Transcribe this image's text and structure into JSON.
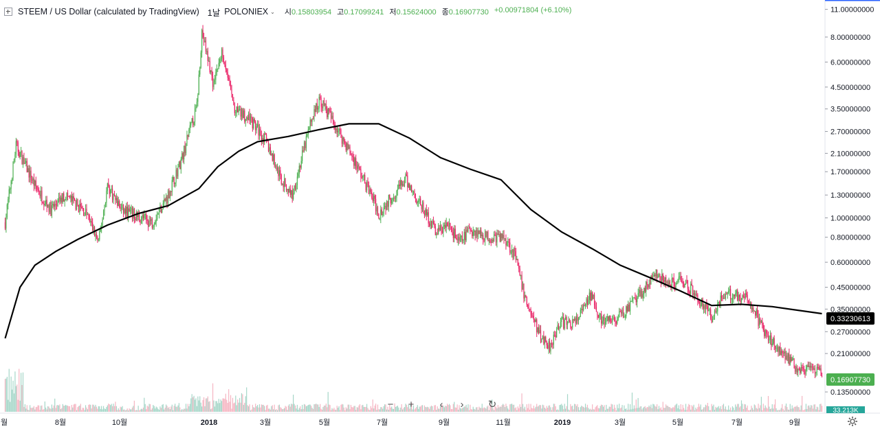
{
  "legend": {
    "symbol": "STEEM / US Dollar (calculated by TradingView)",
    "interval": "1날",
    "exchange": "POLONIEX",
    "open_label": "시",
    "open": "0.15803954",
    "high_label": "고",
    "high": "0.17099241",
    "low_label": "저",
    "low": "0.15624000",
    "close_label": "종",
    "close": "0.16907730",
    "change": "+0.00971804 (+6.10%)"
  },
  "price_axis": {
    "ticks": [
      "11.00000000",
      "8.00000000",
      "6.00000000",
      "4.50000000",
      "3.50000000",
      "2.70000000",
      "2.10000000",
      "1.70000000",
      "1.30000000",
      "1.00000000",
      "0.80000000",
      "0.60000000",
      "0.45000000",
      "0.35000000",
      "0.27000000",
      "0.21000000",
      "0.13500000"
    ],
    "ma_label": "0.33230613",
    "last_label": "0.16907730",
    "volume_label": "33.213K"
  },
  "time_axis": {
    "ticks": [
      "월",
      "8월",
      "10월",
      "2018",
      "3월",
      "5월",
      "7월",
      "9월",
      "11월",
      "2019",
      "3월",
      "5월",
      "7월",
      "9월"
    ]
  },
  "colors": {
    "up": "#4caf50",
    "down": "#e91e63",
    "ma": "#000000",
    "last_bg": "#4caf50",
    "ma_bg": "#000000",
    "vol_up": "#a5d6c8",
    "vol_down": "#f5b5c2"
  },
  "chart_data": {
    "type": "candlestick",
    "scale": "log",
    "ylim": [
      0.12,
      11.5
    ],
    "x_range": [
      "2017-06",
      "2019-09"
    ],
    "close_series": [
      {
        "date": "2017-06-20",
        "value": 0.95
      },
      {
        "date": "2017-07-01",
        "value": 2.3
      },
      {
        "date": "2017-07-20",
        "value": 1.45
      },
      {
        "date": "2017-08-05",
        "value": 1.1
      },
      {
        "date": "2017-08-20",
        "value": 1.3
      },
      {
        "date": "2017-09-10",
        "value": 1.05
      },
      {
        "date": "2017-09-22",
        "value": 0.75
      },
      {
        "date": "2017-10-01",
        "value": 1.45
      },
      {
        "date": "2017-10-15",
        "value": 1.1
      },
      {
        "date": "2017-11-15",
        "value": 0.95
      },
      {
        "date": "2017-12-01",
        "value": 1.3
      },
      {
        "date": "2017-12-15",
        "value": 2.0
      },
      {
        "date": "2017-12-30",
        "value": 3.6
      },
      {
        "date": "2018-01-04",
        "value": 8.5
      },
      {
        "date": "2018-01-15",
        "value": 4.8
      },
      {
        "date": "2018-01-25",
        "value": 6.8
      },
      {
        "date": "2018-02-06",
        "value": 3.4
      },
      {
        "date": "2018-02-20",
        "value": 3.2
      },
      {
        "date": "2018-03-10",
        "value": 2.4
      },
      {
        "date": "2018-03-25",
        "value": 1.55
      },
      {
        "date": "2018-04-05",
        "value": 1.3
      },
      {
        "date": "2018-04-25",
        "value": 3.2
      },
      {
        "date": "2018-05-03",
        "value": 3.9
      },
      {
        "date": "2018-05-20",
        "value": 2.8
      },
      {
        "date": "2018-06-05",
        "value": 2.0
      },
      {
        "date": "2018-06-25",
        "value": 1.25
      },
      {
        "date": "2018-07-01",
        "value": 1.05
      },
      {
        "date": "2018-07-15",
        "value": 1.3
      },
      {
        "date": "2018-07-28",
        "value": 1.55
      },
      {
        "date": "2018-08-15",
        "value": 1.1
      },
      {
        "date": "2018-08-28",
        "value": 0.85
      },
      {
        "date": "2018-09-10",
        "value": 0.92
      },
      {
        "date": "2018-09-20",
        "value": 0.75
      },
      {
        "date": "2018-10-01",
        "value": 0.88
      },
      {
        "date": "2018-10-20",
        "value": 0.8
      },
      {
        "date": "2018-11-05",
        "value": 0.8
      },
      {
        "date": "2018-11-15",
        "value": 0.65
      },
      {
        "date": "2018-11-25",
        "value": 0.4
      },
      {
        "date": "2018-12-10",
        "value": 0.26
      },
      {
        "date": "2018-12-20",
        "value": 0.23
      },
      {
        "date": "2018-12-30",
        "value": 0.3
      },
      {
        "date": "2019-01-15",
        "value": 0.3
      },
      {
        "date": "2019-02-01",
        "value": 0.42
      },
      {
        "date": "2019-02-10",
        "value": 0.3
      },
      {
        "date": "2019-02-25",
        "value": 0.31
      },
      {
        "date": "2019-03-15",
        "value": 0.38
      },
      {
        "date": "2019-04-05",
        "value": 0.52
      },
      {
        "date": "2019-04-20",
        "value": 0.46
      },
      {
        "date": "2019-05-01",
        "value": 0.5
      },
      {
        "date": "2019-05-15",
        "value": 0.42
      },
      {
        "date": "2019-06-01",
        "value": 0.32
      },
      {
        "date": "2019-06-10",
        "value": 0.4
      },
      {
        "date": "2019-06-25",
        "value": 0.42
      },
      {
        "date": "2019-07-10",
        "value": 0.38
      },
      {
        "date": "2019-07-25",
        "value": 0.26
      },
      {
        "date": "2019-08-10",
        "value": 0.22
      },
      {
        "date": "2019-08-25",
        "value": 0.18
      },
      {
        "date": "2019-09-10",
        "value": 0.17
      },
      {
        "date": "2019-09-20",
        "value": 0.169
      }
    ],
    "ma_series": [
      {
        "date": "2017-06-20",
        "value": 0.25
      },
      {
        "date": "2017-07-05",
        "value": 0.45
      },
      {
        "date": "2017-07-20",
        "value": 0.58
      },
      {
        "date": "2017-08-10",
        "value": 0.68
      },
      {
        "date": "2017-09-01",
        "value": 0.78
      },
      {
        "date": "2017-10-01",
        "value": 0.92
      },
      {
        "date": "2017-11-01",
        "value": 1.05
      },
      {
        "date": "2017-12-01",
        "value": 1.15
      },
      {
        "date": "2018-01-01",
        "value": 1.4
      },
      {
        "date": "2018-01-20",
        "value": 1.8
      },
      {
        "date": "2018-02-10",
        "value": 2.15
      },
      {
        "date": "2018-03-01",
        "value": 2.4
      },
      {
        "date": "2018-04-01",
        "value": 2.55
      },
      {
        "date": "2018-05-01",
        "value": 2.75
      },
      {
        "date": "2018-06-01",
        "value": 2.95
      },
      {
        "date": "2018-07-01",
        "value": 2.95
      },
      {
        "date": "2018-08-01",
        "value": 2.5
      },
      {
        "date": "2018-09-01",
        "value": 2.0
      },
      {
        "date": "2018-10-01",
        "value": 1.75
      },
      {
        "date": "2018-11-01",
        "value": 1.55
      },
      {
        "date": "2018-12-01",
        "value": 1.1
      },
      {
        "date": "2019-01-01",
        "value": 0.85
      },
      {
        "date": "2019-02-01",
        "value": 0.7
      },
      {
        "date": "2019-03-01",
        "value": 0.58
      },
      {
        "date": "2019-04-01",
        "value": 0.5
      },
      {
        "date": "2019-05-01",
        "value": 0.43
      },
      {
        "date": "2019-06-01",
        "value": 0.365
      },
      {
        "date": "2019-07-01",
        "value": 0.37
      },
      {
        "date": "2019-08-01",
        "value": 0.36
      },
      {
        "date": "2019-09-20",
        "value": 0.3323
      }
    ]
  }
}
